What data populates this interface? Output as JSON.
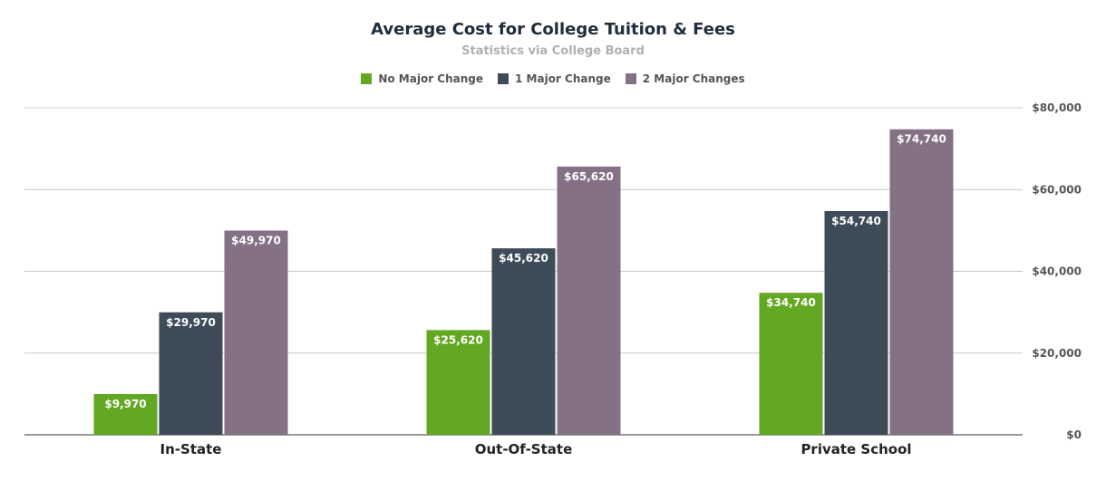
{
  "chart_data": {
    "type": "bar",
    "title": "Average Cost for College Tuition & Fees",
    "subtitle": "Statistics via College Board",
    "categories": [
      "In-State",
      "Out-Of-State",
      "Private School"
    ],
    "series": [
      {
        "name": "No Major Change",
        "color": "#63a823",
        "values": [
          9970,
          25620,
          34740
        ],
        "labels": [
          "$9,970",
          "$25,620",
          "$34,740"
        ]
      },
      {
        "name": "1 Major Change",
        "color": "#3e4b59",
        "values": [
          29970,
          45620,
          54740
        ],
        "labels": [
          "$29,970",
          "$45,620",
          "$54,740"
        ]
      },
      {
        "name": "2 Major Changes",
        "color": "#847186",
        "values": [
          49970,
          65620,
          74740
        ],
        "labels": [
          "$49,970",
          "$65,620",
          "$74,740"
        ]
      }
    ],
    "ylim": [
      0,
      80000
    ],
    "yticks": [
      0,
      20000,
      40000,
      60000,
      80000
    ],
    "ytick_labels": [
      "$0",
      "$20,000",
      "$40,000",
      "$60,000",
      "$80,000"
    ],
    "y_axis_side": "right",
    "grid": true,
    "legend_position": "top"
  }
}
